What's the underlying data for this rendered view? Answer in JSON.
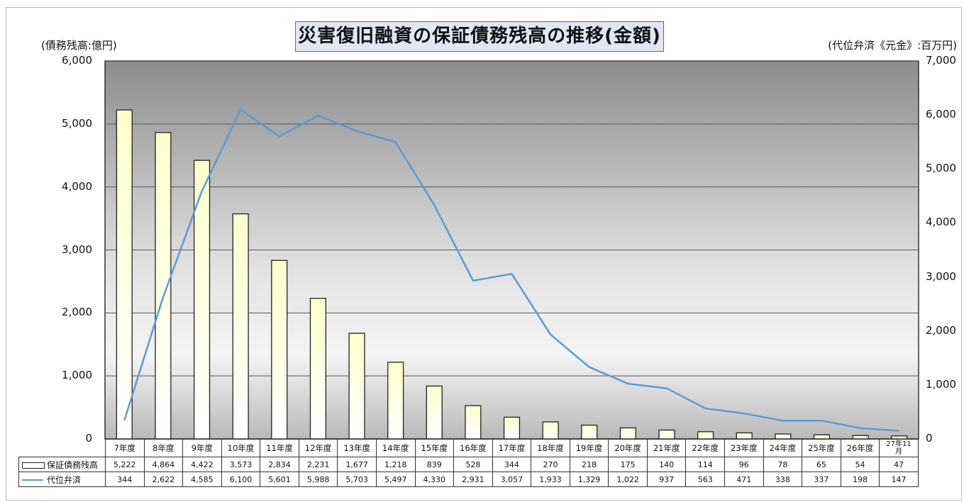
{
  "chart_data": {
    "type": "bar",
    "title": "災害復旧融資の保証債務残高の推移(金額)",
    "y_left_label": "(債務残高:億円)",
    "y_right_label": "(代位弁済《元金》:百万円)",
    "y_left_ticks": [
      "0",
      "1,000",
      "2,000",
      "3,000",
      "4,000",
      "5,000",
      "6,000"
    ],
    "y_right_ticks": [
      "0",
      "1,000",
      "2,000",
      "3,000",
      "4,000",
      "5,000",
      "6,000",
      "7,000"
    ],
    "ylim_left": [
      0,
      6000
    ],
    "ylim_right": [
      0,
      7000
    ],
    "grid": true,
    "categories": [
      "7年度",
      "8年度",
      "9年度",
      "10年度",
      "11年度",
      "12年度",
      "13年度",
      "14年度",
      "15年度",
      "16年度",
      "17年度",
      "18年度",
      "19年度",
      "20年度",
      "21年度",
      "22年度",
      "23年度",
      "24年度",
      "25年度",
      "26年度",
      "27年11月"
    ],
    "series": [
      {
        "name": "保証債務残高",
        "type": "bar",
        "axis": "left",
        "values": [
          5222,
          4864,
          4422,
          3573,
          2834,
          2231,
          1677,
          1218,
          839,
          528,
          344,
          270,
          218,
          175,
          140,
          114,
          96,
          78,
          65,
          54,
          47
        ],
        "labels": [
          "5,222",
          "4,864",
          "4,422",
          "3,573",
          "2,834",
          "2,231",
          "1,677",
          "1,218",
          "839",
          "528",
          "344",
          "270",
          "218",
          "175",
          "140",
          "114",
          "96",
          "78",
          "65",
          "54",
          "47"
        ]
      },
      {
        "name": "代位弁済",
        "type": "line",
        "axis": "right",
        "color": "#5b9bd5",
        "values": [
          344,
          2622,
          4585,
          6100,
          5601,
          5988,
          5703,
          5497,
          4330,
          2931,
          3057,
          1933,
          1329,
          1022,
          937,
          563,
          471,
          338,
          337,
          198,
          147
        ],
        "labels": [
          "344",
          "2,622",
          "4,585",
          "6,100",
          "5,601",
          "5,988",
          "5,703",
          "5,497",
          "4,330",
          "2,931",
          "3,057",
          "1,933",
          "1,329",
          "1,022",
          "937",
          "563",
          "471",
          "338",
          "337",
          "198",
          "147"
        ]
      }
    ]
  }
}
